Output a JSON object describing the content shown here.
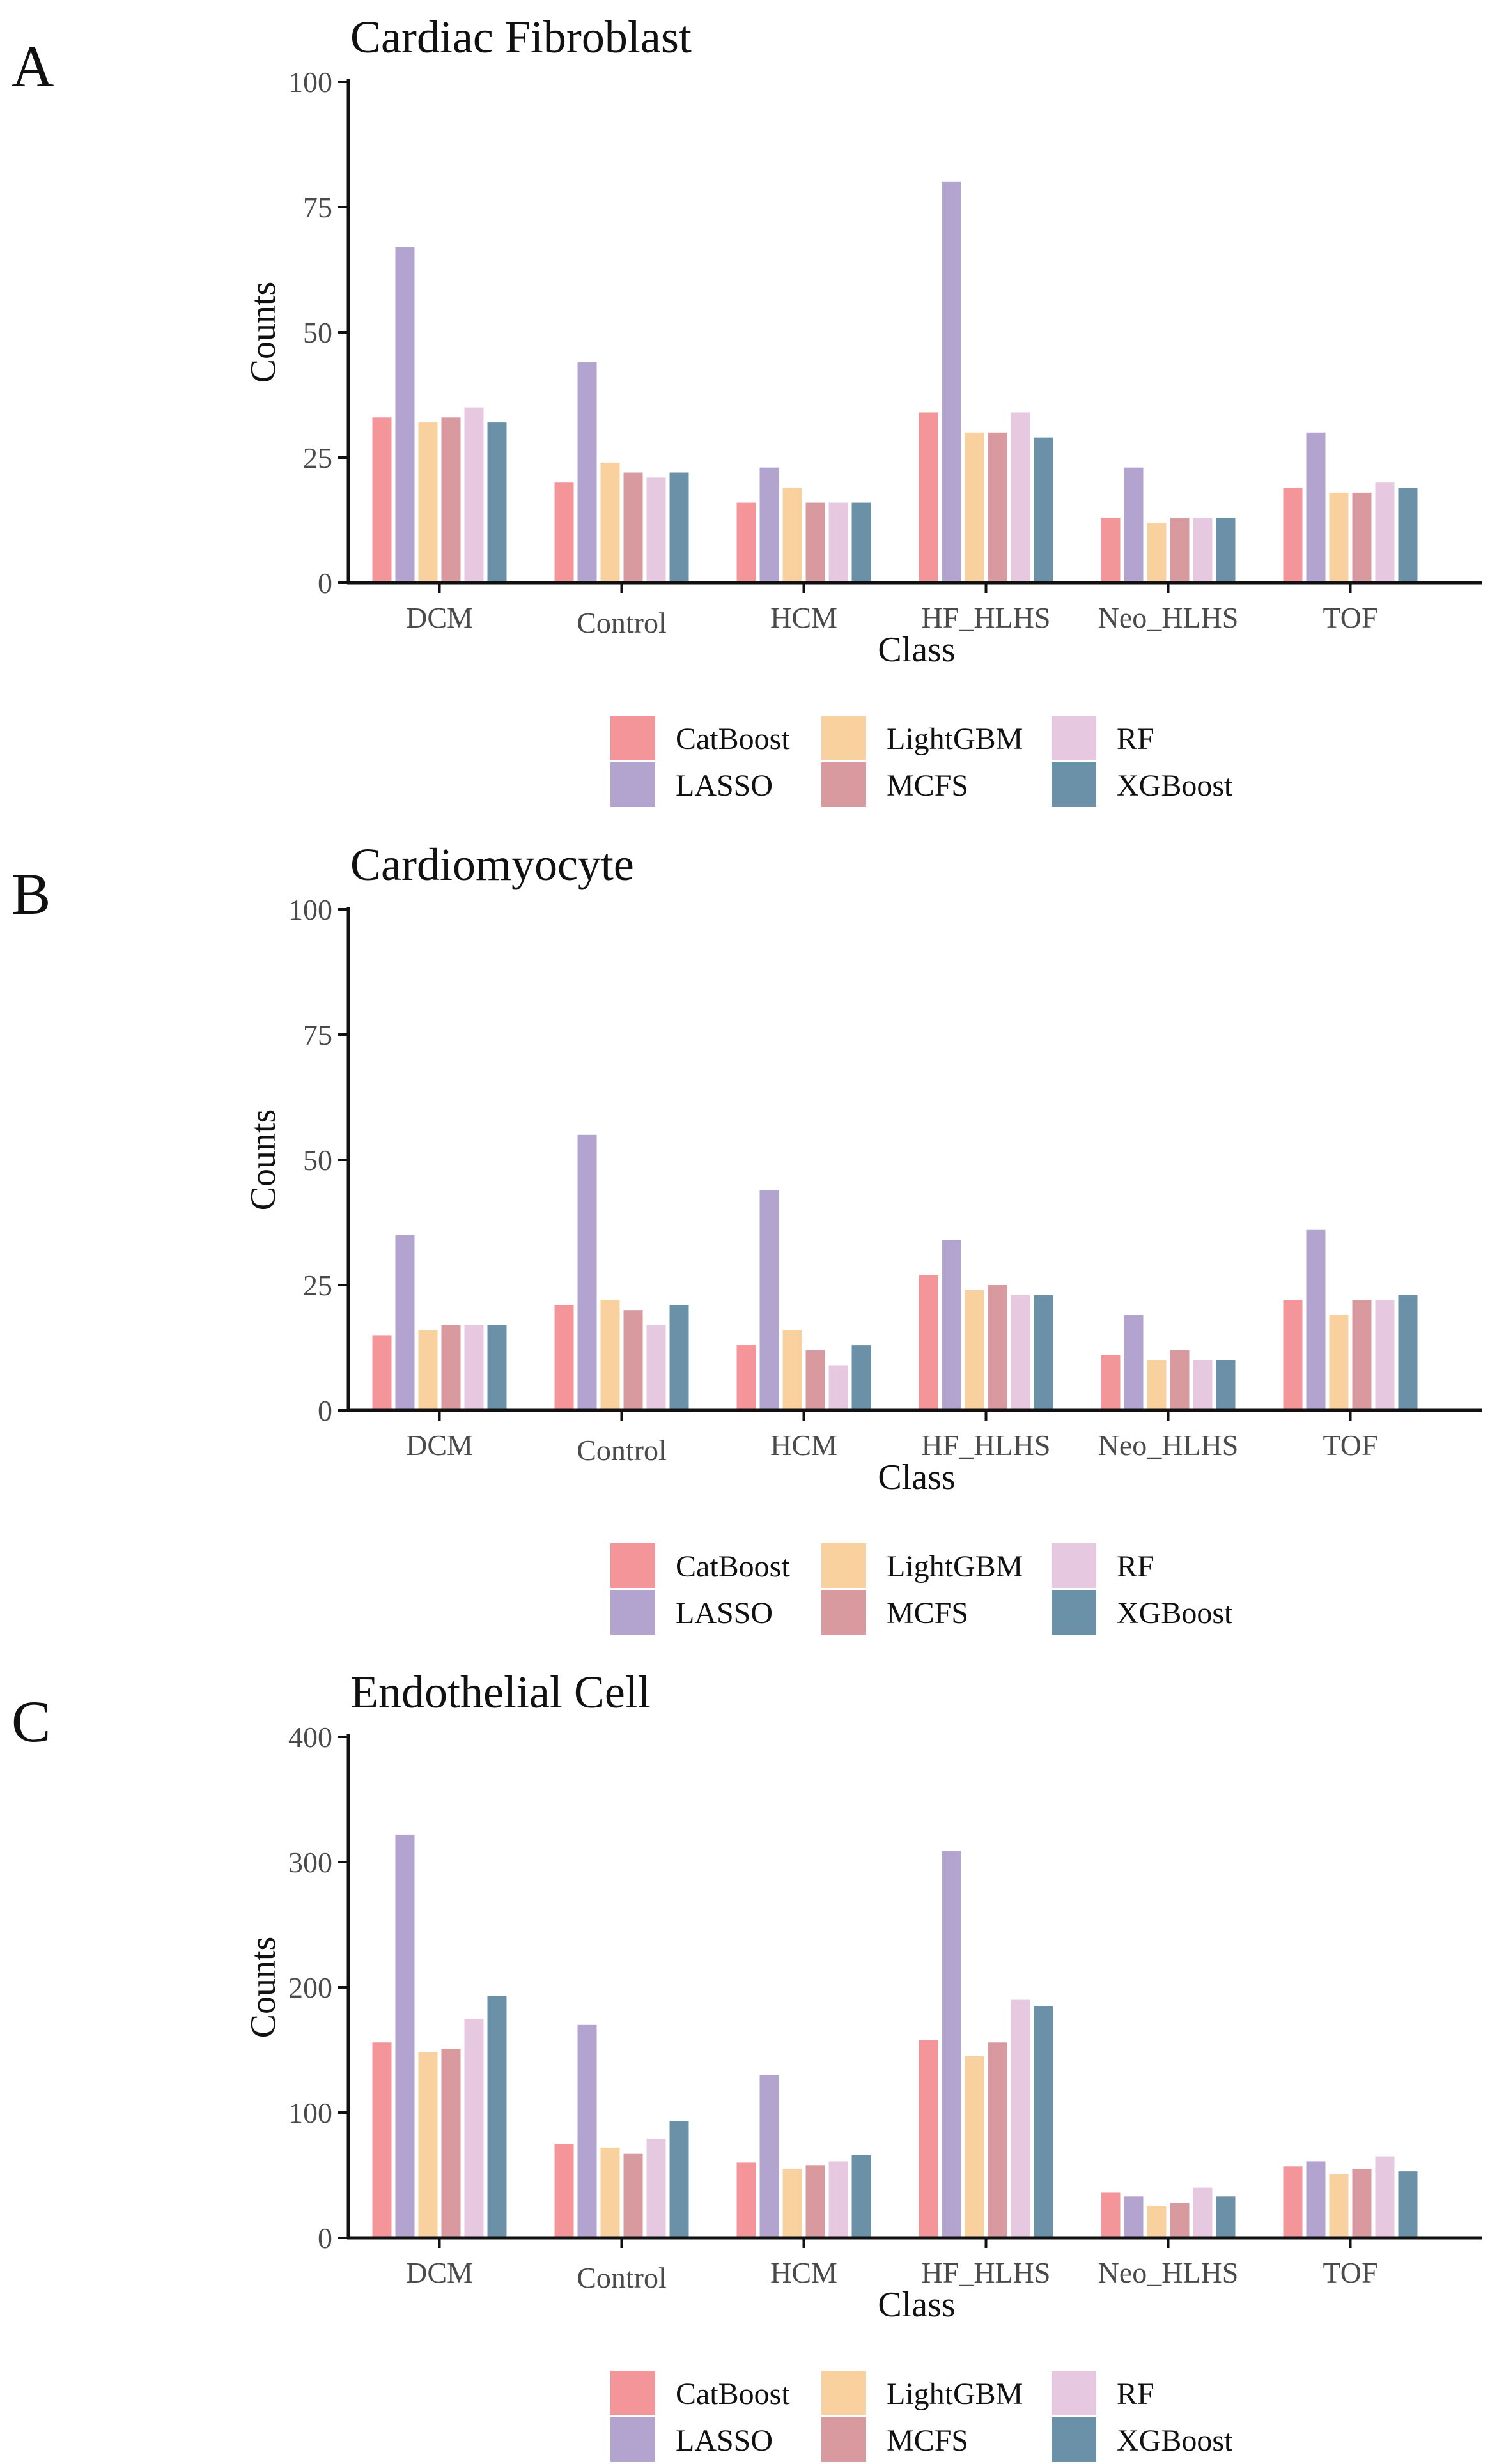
{
  "chart_data": [
    {
      "type": "bar",
      "panel": "A",
      "title": "Cardiac Fibroblast",
      "xlabel": "Class",
      "ylabel": "Counts",
      "ylim": [
        0,
        100
      ],
      "yticks": [
        "0",
        "25",
        "50",
        "75",
        "100"
      ],
      "categories": [
        "DCM",
        "Control",
        "HCM",
        "HF_HLHS",
        "Neo_HLHS",
        "TOF"
      ],
      "series": [
        {
          "name": "CatBoost",
          "values": [
            33,
            20,
            16,
            34,
            13,
            19
          ]
        },
        {
          "name": "LASSO",
          "values": [
            67,
            44,
            23,
            80,
            23,
            30
          ]
        },
        {
          "name": "LightGBM",
          "values": [
            32,
            24,
            19,
            30,
            12,
            18
          ]
        },
        {
          "name": "MCFS",
          "values": [
            33,
            22,
            16,
            30,
            13,
            18
          ]
        },
        {
          "name": "RF",
          "values": [
            35,
            21,
            16,
            34,
            13,
            20
          ]
        },
        {
          "name": "XGBoost",
          "values": [
            32,
            22,
            16,
            29,
            13,
            19
          ]
        }
      ]
    },
    {
      "type": "bar",
      "panel": "B",
      "title": "Cardiomyocyte",
      "xlabel": "Class",
      "ylabel": "Counts",
      "ylim": [
        0,
        100
      ],
      "yticks": [
        "0",
        "25",
        "50",
        "75",
        "100"
      ],
      "categories": [
        "DCM",
        "Control",
        "HCM",
        "HF_HLHS",
        "Neo_HLHS",
        "TOF"
      ],
      "series": [
        {
          "name": "CatBoost",
          "values": [
            15,
            21,
            13,
            27,
            11,
            22
          ]
        },
        {
          "name": "LASSO",
          "values": [
            35,
            55,
            44,
            34,
            19,
            36
          ]
        },
        {
          "name": "LightGBM",
          "values": [
            16,
            22,
            16,
            24,
            10,
            19
          ]
        },
        {
          "name": "MCFS",
          "values": [
            17,
            20,
            12,
            25,
            12,
            22
          ]
        },
        {
          "name": "RF",
          "values": [
            17,
            17,
            9,
            23,
            10,
            22
          ]
        },
        {
          "name": "XGBoost",
          "values": [
            17,
            21,
            13,
            23,
            10,
            23
          ]
        }
      ]
    },
    {
      "type": "bar",
      "panel": "C",
      "title": "Endothelial Cell",
      "xlabel": "Class",
      "ylabel": "Counts",
      "ylim": [
        0,
        400
      ],
      "yticks": [
        "0",
        "100",
        "200",
        "300",
        "400"
      ],
      "categories": [
        "DCM",
        "Control",
        "HCM",
        "HF_HLHS",
        "Neo_HLHS",
        "TOF"
      ],
      "series": [
        {
          "name": "CatBoost",
          "values": [
            156,
            75,
            60,
            158,
            36,
            57
          ]
        },
        {
          "name": "LASSO",
          "values": [
            322,
            170,
            130,
            309,
            33,
            61
          ]
        },
        {
          "name": "LightGBM",
          "values": [
            148,
            72,
            55,
            145,
            25,
            51
          ]
        },
        {
          "name": "MCFS",
          "values": [
            151,
            67,
            58,
            156,
            28,
            55
          ]
        },
        {
          "name": "RF",
          "values": [
            175,
            79,
            61,
            190,
            40,
            65
          ]
        },
        {
          "name": "XGBoost",
          "values": [
            193,
            93,
            66,
            185,
            33,
            53
          ]
        }
      ]
    }
  ],
  "legend": [
    {
      "name": "CatBoost",
      "color": "#F4959A"
    },
    {
      "name": "LightGBM",
      "color": "#F8D19E"
    },
    {
      "name": "RF",
      "color": "#E6C8E0"
    },
    {
      "name": "LASSO",
      "color": "#B2A4CE"
    },
    {
      "name": "MCFS",
      "color": "#D89A9E"
    },
    {
      "name": "XGBoost",
      "color": "#6B91A8"
    }
  ],
  "series_colors": {
    "CatBoost": "#F4959A",
    "LASSO": "#B2A4CE",
    "LightGBM": "#F8D19E",
    "MCFS": "#D89A9E",
    "RF": "#E6C8E0",
    "XGBoost": "#6B91A8"
  }
}
